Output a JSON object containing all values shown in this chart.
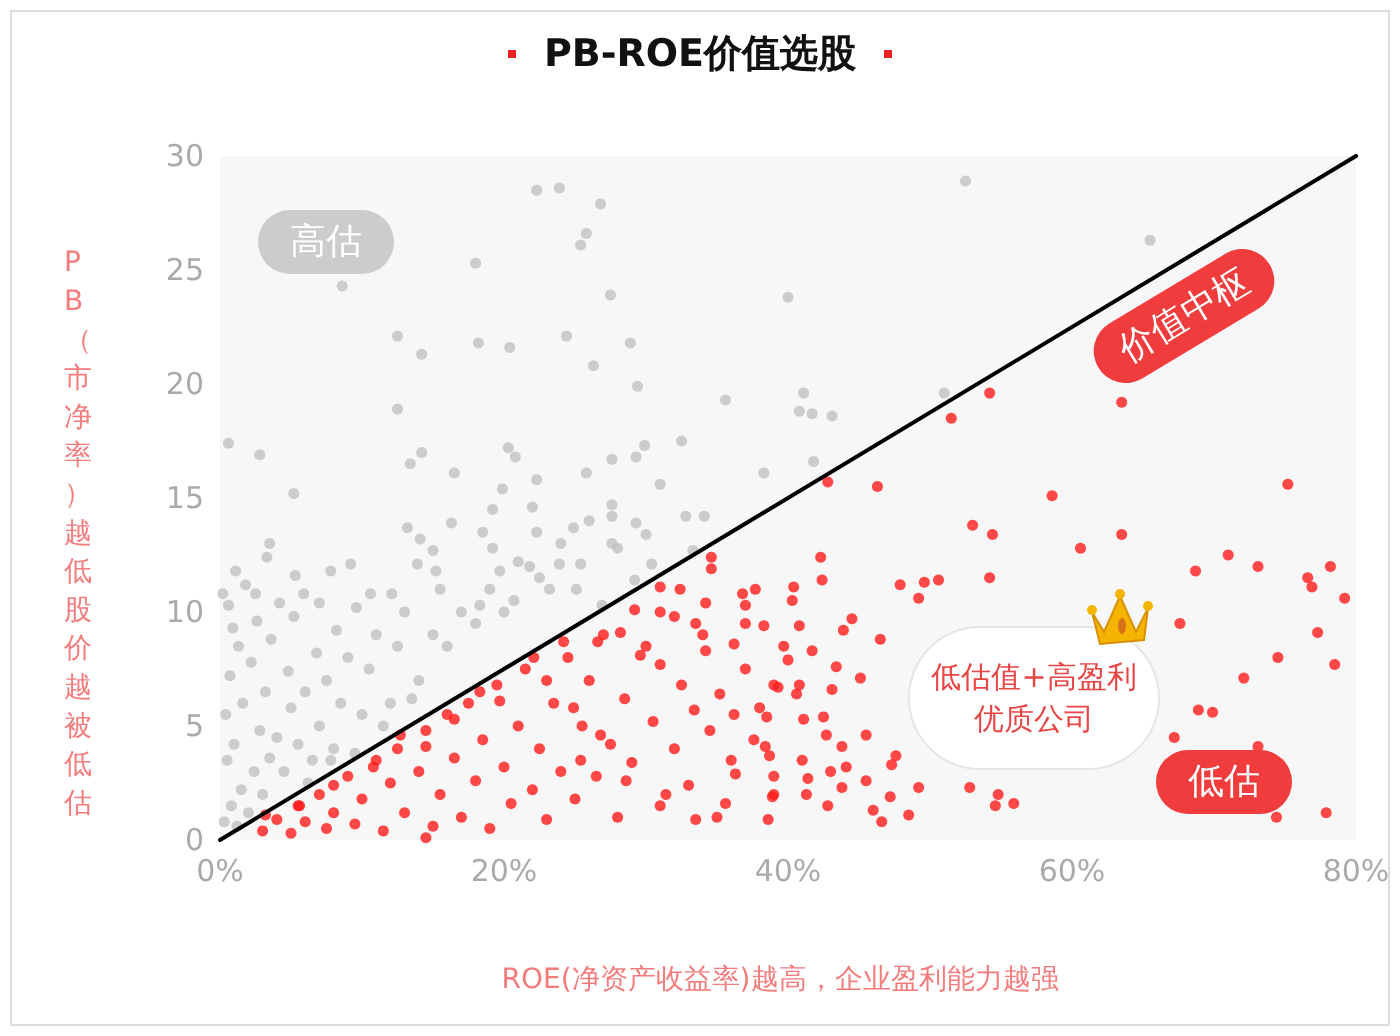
{
  "chart_data": {
    "type": "scatter",
    "title": "PB-ROE价值选股",
    "xlabel": "ROE(净资产收益率)越高，企业盈利能力越强",
    "ylabel": "PB（市净率）越低股价越被低估",
    "annotations": [
      "高估",
      "价值中枢",
      "低估值+高盈利优质公司",
      "低估"
    ],
    "xlim": [
      0,
      80
    ],
    "xticks": [
      {
        "value": 0,
        "label": "0%"
      },
      {
        "value": 20,
        "label": "20%"
      },
      {
        "value": 40,
        "label": "40%"
      },
      {
        "value": 60,
        "label": "60%"
      },
      {
        "value": 80,
        "label": "80%"
      }
    ],
    "ylim": [
      0,
      30
    ],
    "yticks": [
      0,
      5,
      10,
      15,
      20,
      25,
      30
    ],
    "grid": false,
    "marker": "circle",
    "series": [
      {
        "color": "#c0c0c0",
        "x": [
          22.3,
          23.9,
          26.8,
          25.8,
          25.4,
          18,
          8.6,
          27.5,
          40,
          12.5,
          14.2,
          18.2,
          20.4,
          24.4,
          28.9,
          26.3,
          29.4,
          35.6,
          12.5,
          0.6,
          2.8,
          14.2,
          13.4,
          16.5,
          20.3,
          20.8,
          22.3,
          25.8,
          27.6,
          29.3,
          29.9,
          32.5,
          31,
          38.3,
          5.2,
          52.5,
          65.5,
          41.1,
          40.8,
          41.7,
          43.1,
          51,
          41.8,
          19.9,
          19.2,
          22,
          27.6,
          27.6,
          29.3,
          32.8,
          34.1,
          13.2,
          16.3,
          18.5,
          22.3,
          24.9,
          14.1,
          3.5,
          3.3,
          15,
          19.2,
          27.6,
          33.3,
          9.2,
          7.8,
          5.3,
          1.1,
          13.9,
          15.2,
          19.7,
          21.8,
          23.9,
          25.4,
          30.4,
          0.6,
          2.5,
          5.9,
          7,
          10.6,
          12.1,
          18.3,
          20.7,
          23.2,
          25.1,
          26.9,
          29.2,
          0.3,
          0.8,
          1.2,
          1.5,
          2,
          2.4,
          0.5,
          1,
          3,
          3.5,
          2.8,
          0.4,
          1.6,
          4,
          4.5,
          5,
          3.2,
          0.7,
          2.2,
          5.5,
          6,
          4.8,
          1.3,
          3.6,
          6.5,
          7,
          7.5,
          6.8,
          0.9,
          2.6,
          8,
          8.5,
          9,
          8.2,
          5.2,
          10,
          10.5,
          11,
          9.6,
          12,
          12.5,
          13,
          14,
          15,
          16,
          15.5,
          17,
          18,
          19,
          20,
          21,
          22.5,
          24,
          26,
          28,
          30,
          7.8,
          6.2,
          9.5,
          11.5,
          13.5,
          0.2,
          1.8,
          4.2
        ],
        "values": [
          28.5,
          28.6,
          27.9,
          26.6,
          26.1,
          25.3,
          24.3,
          23.9,
          23.8,
          22.1,
          21.3,
          21.8,
          21.6,
          22.1,
          21.8,
          20.8,
          19.9,
          19.3,
          18.9,
          17.4,
          16.9,
          17,
          16.5,
          16.1,
          17.2,
          16.8,
          15.8,
          16.1,
          16.7,
          16.8,
          17.3,
          17.5,
          15.6,
          16.1,
          15.2,
          28.9,
          26.3,
          19.6,
          18.8,
          18.7,
          18.6,
          19.6,
          16.6,
          15.4,
          14.5,
          14.6,
          14.7,
          14.2,
          13.9,
          14.2,
          14.2,
          13.7,
          13.9,
          13.5,
          13.5,
          13.7,
          13.2,
          13,
          12.4,
          12.7,
          12.8,
          13,
          12.7,
          12.1,
          11.8,
          11.6,
          11.8,
          12.1,
          11.8,
          11.8,
          12,
          12.1,
          12.1,
          12.1,
          10.3,
          10.8,
          10.8,
          10.4,
          10.8,
          10.8,
          10.3,
          10.5,
          11,
          11,
          10.3,
          11.4,
          0.8,
          1.5,
          0.6,
          2.2,
          1.2,
          3,
          3.5,
          4.2,
          2,
          3.6,
          4.8,
          5.5,
          6,
          4.5,
          3,
          5.8,
          6.5,
          7.2,
          7.8,
          4.2,
          6.5,
          7.4,
          8.5,
          8.8,
          3.5,
          5,
          7,
          8.2,
          9.3,
          9.6,
          4,
          6,
          8,
          9.2,
          9.8,
          5.5,
          7.5,
          9,
          10.2,
          6,
          8.5,
          10,
          7,
          9,
          8.5,
          11,
          10,
          9.5,
          11,
          10,
          12.2,
          11.5,
          13,
          14,
          12.8,
          13.4,
          3.5,
          2.5,
          3.8,
          5,
          6.2,
          10.8,
          11.2,
          10.4
        ]
      },
      {
        "color": "#ff1a1a",
        "x": [
          54.2,
          51.5,
          63.5,
          42.8,
          46.3,
          58.6,
          75.2,
          53,
          54.4,
          63.5,
          60.6,
          42.3,
          68.7,
          71,
          73.1,
          78.2,
          76.6,
          76.9,
          79.2,
          54.2,
          50.6,
          49.6,
          47.9,
          49.2,
          42.4,
          40.4,
          40.3,
          44.5,
          67.6,
          77.3,
          40.8,
          43.9,
          46.5,
          41.7,
          40,
          74.5,
          78.5,
          43.4,
          45.1,
          72.1,
          40.8,
          43.1,
          39.3,
          68.9,
          69.9,
          42.5,
          41.1,
          45.5,
          42.7,
          67.2,
          73.1,
          43.8,
          47.6,
          38.4,
          41,
          44.1,
          47.3,
          43,
          41.4,
          45.5,
          49.2,
          52.8,
          54.8,
          43.8,
          41.3,
          47.2,
          38.9,
          42.8,
          46,
          48.5,
          54.6,
          55.9,
          46.6,
          38.6,
          77.9,
          74.4,
          34.6,
          34.6,
          31,
          32.4,
          34.2,
          37.7,
          37,
          37,
          38.3,
          32,
          33.5,
          29.2,
          31,
          28.2,
          26.6,
          24.2,
          22.1,
          29.6,
          31,
          34.2,
          36.2,
          39.7,
          39,
          40.6,
          35.2,
          33.4,
          36.2,
          38.5,
          37.6,
          38.7,
          36.3,
          39,
          33.5,
          35.6,
          31.4,
          28.6,
          25.4,
          26.8,
          24.9,
          23,
          19.7,
          18.3,
          16.5,
          14.5,
          12.7,
          10.8,
          8,
          5.6,
          3.2,
          14.5,
          3,
          4,
          5,
          5.5,
          6,
          7,
          7.5,
          8,
          9,
          9.5,
          10,
          11,
          11.5,
          12,
          12.5,
          13,
          14,
          14.5,
          15,
          15.5,
          16,
          16.5,
          17,
          17.5,
          18,
          18.5,
          19,
          19.5,
          20,
          20.5,
          21,
          21.5,
          22,
          22.5,
          23,
          23.5,
          24,
          24.5,
          25,
          25.5,
          26,
          26.5,
          27,
          27.5,
          28,
          28.5,
          29,
          30,
          30.5,
          31,
          32,
          32.5,
          33,
          34,
          34.5,
          35,
          36,
          37,
          38,
          39,
          36.8
        ],
        "values": [
          19.6,
          18.5,
          19.2,
          15.7,
          15.5,
          15.1,
          15.6,
          13.8,
          13.4,
          13.4,
          12.8,
          12.4,
          11.8,
          12.5,
          12,
          12,
          11.5,
          11.1,
          10.6,
          11.5,
          11.4,
          11.3,
          11.2,
          10.6,
          11.4,
          11.1,
          10.5,
          9.7,
          9.5,
          9.1,
          9.4,
          9.2,
          8.8,
          8.3,
          7.9,
          8,
          7.7,
          7.6,
          7.1,
          7.1,
          6.8,
          6.6,
          6.7,
          5.7,
          5.6,
          5.4,
          5.3,
          4.6,
          4.6,
          4.5,
          4.1,
          4.1,
          3.7,
          4.1,
          3.5,
          3.2,
          3.3,
          3,
          2.7,
          2.6,
          2.3,
          2.3,
          2,
          2.3,
          2,
          1.9,
          1.9,
          1.5,
          1.3,
          1.1,
          1.5,
          1.6,
          0.8,
          0.9,
          1.2,
          1,
          12.4,
          11.9,
          11.1,
          11,
          10.4,
          11,
          10.3,
          9.5,
          9.4,
          9.8,
          9.5,
          10.1,
          10,
          9.1,
          8.7,
          8.7,
          8,
          8.1,
          7.7,
          8.3,
          8.6,
          8.5,
          6.8,
          6.4,
          6.4,
          5.7,
          5.5,
          5.4,
          4.4,
          3.7,
          2.9,
          2,
          0.9,
          1.6,
          2,
          2.6,
          3.5,
          4.6,
          5.8,
          7,
          6.1,
          6.5,
          5.3,
          4.1,
          4.6,
          3.2,
          2.4,
          1.5,
          1.1,
          0.1,
          0.4,
          0.9,
          0.3,
          1.5,
          0.8,
          2,
          0.5,
          1.2,
          2.8,
          0.7,
          1.8,
          3.5,
          0.4,
          2.5,
          4,
          1.2,
          3,
          4.8,
          0.6,
          2,
          5.5,
          3.6,
          1,
          6,
          2.6,
          4.4,
          0.5,
          6.8,
          3.2,
          1.6,
          5,
          7.5,
          2.2,
          4,
          0.9,
          6,
          3,
          8,
          1.8,
          5,
          7,
          2.8,
          9,
          4.2,
          1,
          6.2,
          3.4,
          8.5,
          5.2,
          1.5,
          4,
          6.8,
          2.4,
          9,
          4.8,
          1,
          3.5,
          7.5,
          5.8,
          2.8,
          10.8
        ]
      },
      {
        "type": "line",
        "color": "#000000",
        "marker": "none",
        "x": [
          0,
          80
        ],
        "values": [
          0,
          30
        ]
      }
    ]
  }
}
